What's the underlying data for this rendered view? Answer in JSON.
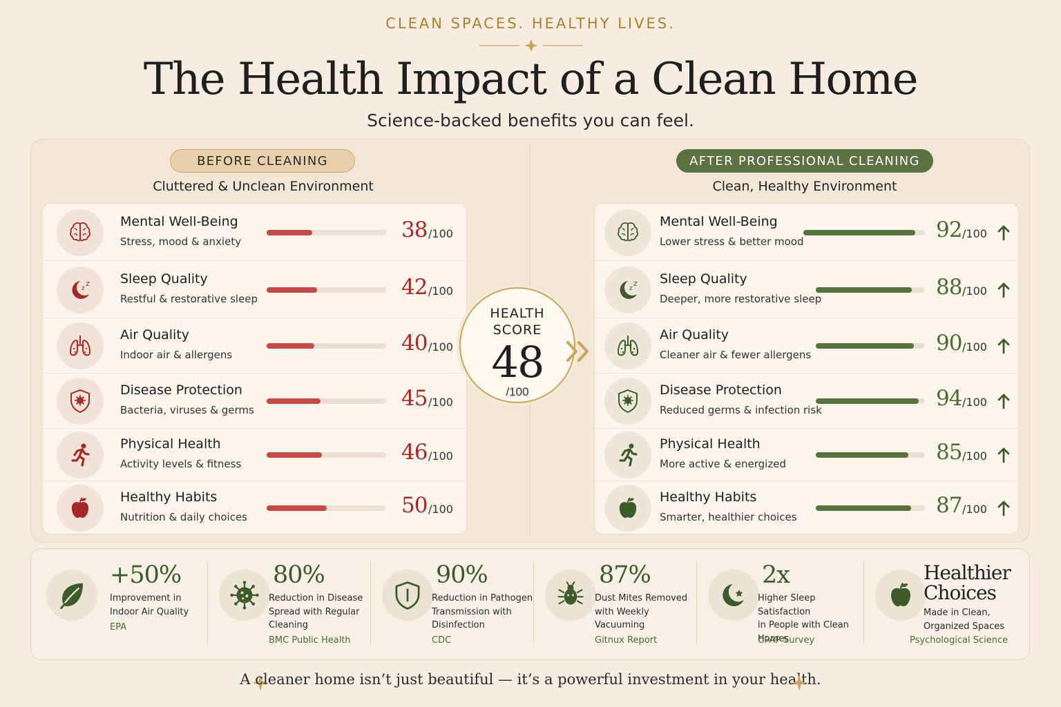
{
  "header": {
    "kicker": "CLEAN SPACES. HEALTHY LIVES.",
    "title": "The Health Impact of a Clean Home",
    "subtitle": "Science-backed benefits you can feel."
  },
  "before": {
    "badge": "BEFORE CLEANING",
    "environment": "Cluttered & Unclean Environment",
    "rows": [
      {
        "icon": "brain-icon",
        "title": "Mental Well-Being",
        "subtitle": "Stress, mood & anxiety",
        "score": 38,
        "score_text": "38",
        "denominator": "/100"
      },
      {
        "icon": "moon-sleep-icon",
        "title": "Sleep Quality",
        "subtitle": "Restful & restorative sleep",
        "score": 42,
        "score_text": "42",
        "denominator": "/100"
      },
      {
        "icon": "lungs-icon",
        "title": "Air Quality",
        "subtitle": "Indoor air & allergens",
        "score": 40,
        "score_text": "40",
        "denominator": "/100"
      },
      {
        "icon": "shield-germ-icon",
        "title": "Disease Protection",
        "subtitle": "Bacteria, viruses & germs",
        "score": 45,
        "score_text": "45",
        "denominator": "/100"
      },
      {
        "icon": "runner-icon",
        "title": "Physical Health",
        "subtitle": "Activity levels & fitness",
        "score": 46,
        "score_text": "46",
        "denominator": "/100"
      },
      {
        "icon": "apple-icon",
        "title": "Healthy Habits",
        "subtitle": "Nutrition & daily choices",
        "score": 50,
        "score_text": "50",
        "denominator": "/100"
      }
    ]
  },
  "after": {
    "badge": "AFTER PROFESSIONAL CLEANING",
    "environment": "Clean, Healthy Environment",
    "rows": [
      {
        "icon": "brain-icon",
        "title": "Mental Well-Being",
        "subtitle": "Lower stress & better mood",
        "score": 92,
        "score_text": "92",
        "denominator": "/100"
      },
      {
        "icon": "moon-sleep-icon",
        "title": "Sleep Quality",
        "subtitle": "Deeper, more restorative sleep",
        "score": 88,
        "score_text": "88",
        "denominator": "/100"
      },
      {
        "icon": "lungs-icon",
        "title": "Air Quality",
        "subtitle": "Cleaner air & fewer allergens",
        "score": 90,
        "score_text": "90",
        "denominator": "/100"
      },
      {
        "icon": "shield-germ-icon",
        "title": "Disease Protection",
        "subtitle": "Reduced germs & infection risk",
        "score": 94,
        "score_text": "94",
        "denominator": "/100"
      },
      {
        "icon": "runner-icon",
        "title": "Physical Health",
        "subtitle": "More active & energized",
        "score": 85,
        "score_text": "85",
        "denominator": "/100"
      },
      {
        "icon": "apple-icon",
        "title": "Healthy Habits",
        "subtitle": "Smarter, healthier choices",
        "score": 87,
        "score_text": "87",
        "denominator": "/100"
      }
    ]
  },
  "health_score": {
    "label_line1": "HEALTH",
    "label_line2": "SCORE",
    "value": "48",
    "denominator": "/100"
  },
  "stats": [
    {
      "icon": "leaf-icon",
      "value": "+50%",
      "desc": [
        "Improvement in",
        "Indoor Air Quality"
      ],
      "source": "EPA"
    },
    {
      "icon": "virus-icon",
      "value": "80%",
      "desc": [
        "Reduction in Disease",
        "Spread with Regular",
        "Cleaning"
      ],
      "source": "BMC Public Health"
    },
    {
      "icon": "shield-icon",
      "value": "90%",
      "desc": [
        "Reduction in Pathogen",
        "Transmission with",
        "Disinfection"
      ],
      "source": "CDC"
    },
    {
      "icon": "dust-mite-icon",
      "value": "87%",
      "desc": [
        "Dust Mites Removed",
        "with Weekly",
        "Vacuuming"
      ],
      "source": "Gitnux Report"
    },
    {
      "icon": "moon-star-icon",
      "value": "2x",
      "desc": [
        "Higher Sleep Satisfaction",
        "in People with Clean",
        "Homes"
      ],
      "source": "CPAP Survey"
    },
    {
      "icon": "apple-icon",
      "value": "Healthier Choices",
      "value_lines": [
        "Healthier",
        "Choices"
      ],
      "desc": [
        "Made in Clean,",
        "Organized Spaces"
      ],
      "source": "Psychological Science"
    }
  ],
  "closing": "A cleaner home isn’t just beautiful — it’s a powerful investment in your health.",
  "colors": {
    "accent_gold": "#a8822e",
    "before_red": "#a82828",
    "after_green": "#4c6a33",
    "background": "#f6ecdf"
  }
}
